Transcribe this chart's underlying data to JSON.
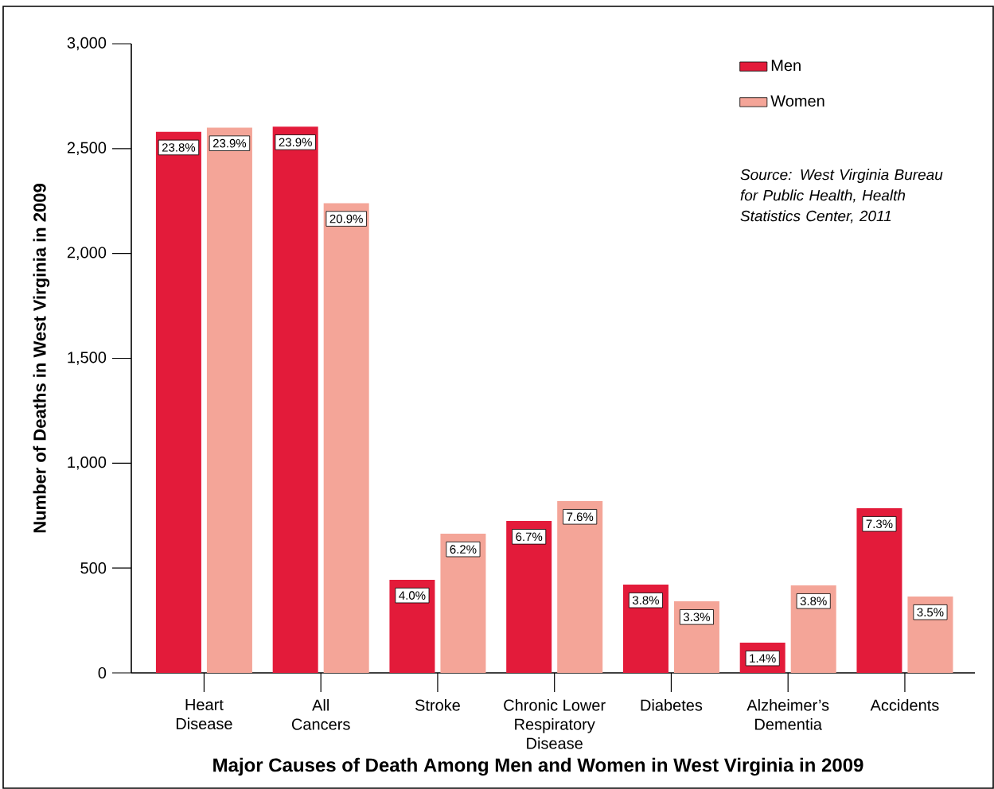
{
  "chart_data": {
    "type": "bar",
    "title": "Major Causes of Death Among Men and Women in West Virginia in 2009",
    "ylabel": "Number of Deaths in West Virginia in 2009",
    "categories": [
      "Heart\nDisease",
      "All\nCancers",
      "Stroke",
      "Chronic Lower\nRespiratory\nDisease",
      "Diabetes",
      "Alzheimer’s\nDementia",
      "Accidents"
    ],
    "series": [
      {
        "name": "Men",
        "color": "#e31b3a",
        "values": [
          2580,
          2605,
          444,
          724,
          421,
          144,
          785
        ]
      },
      {
        "name": "Women",
        "color": "#f4a598",
        "values": [
          2600,
          2240,
          664,
          819,
          341,
          417,
          364
        ]
      }
    ],
    "ylim": [
      0,
      3000
    ],
    "yticks": [
      {
        "value": 0,
        "label": "0"
      },
      {
        "value": 500,
        "label": "500"
      },
      {
        "value": 1000,
        "label": "1,000"
      },
      {
        "value": 1500,
        "label": "1,500"
      },
      {
        "value": 2000,
        "label": "2,000"
      },
      {
        "value": 2500,
        "label": "2,500"
      },
      {
        "value": 3000,
        "label": "3,000"
      }
    ],
    "grid": false,
    "legend": "top right",
    "annotations": [
      "Source: West Virginia Bureau for Public Health, Health Statistics Center, 2011",
      {
        "text": "23.8%",
        "x": "Heart\nDisease",
        "y": 2580
      },
      {
        "text": "23.9%",
        "x": "Heart\nDisease",
        "y": 2600
      },
      {
        "text": "23.9%",
        "x": "All\nCancers",
        "y": 2605
      },
      {
        "text": "20.9%",
        "x": "All\nCancers",
        "y": 2240
      },
      {
        "text": "4.0%",
        "x": "Stroke",
        "y": 444
      },
      {
        "text": "6.2%",
        "x": "Stroke",
        "y": 664
      },
      {
        "text": "6.7%",
        "x": "Chronic Lower\nRespiratory\nDisease",
        "y": 724
      },
      {
        "text": "7.6%",
        "x": "Chronic Lower\nRespiratory\nDisease",
        "y": 819
      },
      {
        "text": "3.8%",
        "x": "Diabetes",
        "y": 421
      },
      {
        "text": "3.3%",
        "x": "Diabetes",
        "y": 341
      },
      {
        "text": "1.4%",
        "x": "Alzheimer’s\nDementia",
        "y": 144
      },
      {
        "text": "3.8%",
        "x": "Alzheimer’s\nDementia",
        "y": 417
      },
      {
        "text": "7.3%",
        "x": "Accidents",
        "y": 785
      },
      {
        "text": "3.5%",
        "x": "Accidents",
        "y": 364
      }
    ]
  }
}
